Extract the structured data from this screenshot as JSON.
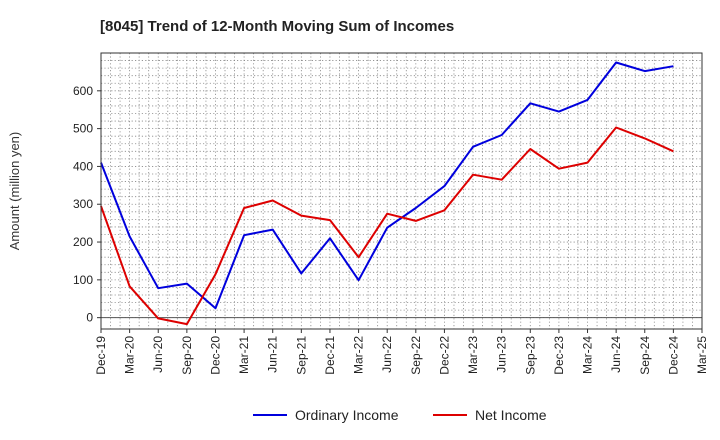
{
  "chart_data": {
    "type": "line",
    "title": "[8045]  Trend of 12-Month Moving Sum of Incomes",
    "xlabel": "",
    "ylabel": "Amount (million yen)",
    "ylim": [
      -30,
      700
    ],
    "yticks": [
      0,
      100,
      200,
      300,
      400,
      500,
      600
    ],
    "grid": true,
    "legend_position": "bottom-center",
    "categories": [
      "Dec-19",
      "Mar-20",
      "Jun-20",
      "Sep-20",
      "Dec-20",
      "Mar-21",
      "Jun-21",
      "Sep-21",
      "Dec-21",
      "Mar-22",
      "Jun-22",
      "Sep-22",
      "Dec-22",
      "Mar-23",
      "Jun-23",
      "Sep-23",
      "Dec-23",
      "Mar-24",
      "Jun-24",
      "Sep-24",
      "Dec-24",
      "Mar-25"
    ],
    "series": [
      {
        "name": "Ordinary Income",
        "color": "#0000dd",
        "values": [
          410,
          215,
          78,
          90,
          25,
          218,
          233,
          117,
          210,
          99,
          238,
          290,
          348,
          452,
          483,
          567,
          545,
          576,
          675,
          652,
          665,
          null
        ]
      },
      {
        "name": "Net Income",
        "color": "#dd0000",
        "values": [
          295,
          83,
          -2,
          -17,
          115,
          290,
          310,
          270,
          258,
          160,
          275,
          256,
          284,
          378,
          365,
          446,
          394,
          410,
          503,
          474,
          440,
          null
        ]
      }
    ]
  }
}
